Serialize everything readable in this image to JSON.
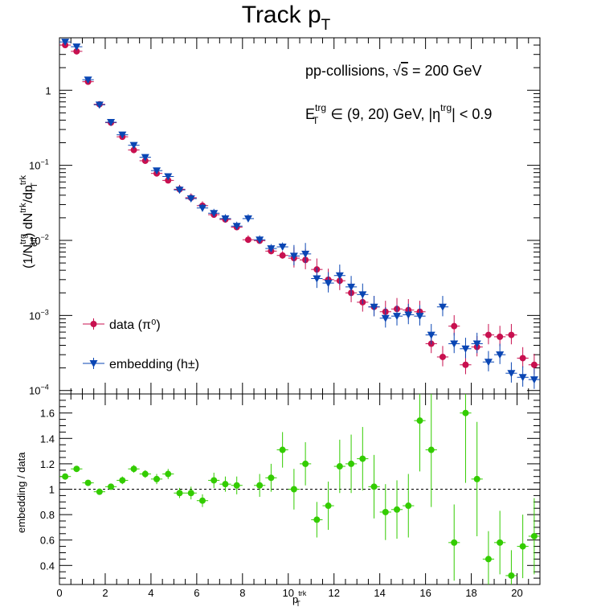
{
  "chart_data": [
    {
      "type": "scatter",
      "title": "Track p",
      "title_sub": "T",
      "annotations": {
        "line1": "pp-collisions, √s = 200 GeV",
        "line2": "E_T^trg ∈ (9, 20) GeV, |η^trg| < 0.9"
      },
      "ylabel": "(1/N_eff^trg) dN^trk/dp_T^trk",
      "yscale": "log",
      "ylim": [
        9e-05,
        5
      ],
      "xlim": [
        0,
        21
      ],
      "y_ticks": [
        "10⁻⁴",
        "10⁻³",
        "10⁻²",
        "10⁻¹",
        "1"
      ],
      "legend": {
        "placement": "bottom-left",
        "entries": [
          "data (π⁰)",
          "embedding (h±)"
        ]
      },
      "series": [
        {
          "name": "data (π⁰)",
          "color": "#c8104f",
          "marker": "circle",
          "x": [
            0.25,
            0.75,
            1.25,
            1.75,
            2.25,
            2.75,
            3.25,
            3.75,
            4.25,
            4.75,
            5.25,
            5.75,
            6.25,
            6.75,
            7.25,
            7.75,
            8.25,
            8.75,
            9.25,
            9.75,
            10.25,
            10.75,
            11.25,
            11.75,
            12.25,
            12.75,
            13.25,
            13.75,
            14.25,
            14.75,
            15.25,
            15.75,
            16.25,
            16.75,
            17.25,
            17.75,
            18.25,
            18.75,
            19.25,
            19.75,
            20.25,
            20.75
          ],
          "y": [
            4.0,
            3.3,
            1.3,
            0.65,
            0.37,
            0.24,
            0.16,
            0.115,
            0.078,
            0.063,
            0.048,
            0.037,
            0.029,
            0.022,
            0.019,
            0.015,
            0.0102,
            0.0099,
            0.0072,
            0.0063,
            0.0058,
            0.0055,
            0.0041,
            0.003,
            0.0029,
            0.002,
            0.0015,
            0.0013,
            0.00112,
            0.00122,
            0.00118,
            0.00112,
            0.00042,
            0.00028,
            0.00072,
            0.00022,
            0.00038,
            0.00055,
            0.00052,
            0.00055,
            0.00027,
            0.00022
          ]
        },
        {
          "name": "embedding (h±)",
          "color": "#0a46b4",
          "marker": "triangle-down",
          "x": [
            0.25,
            0.75,
            1.25,
            1.75,
            2.25,
            2.75,
            3.25,
            3.75,
            4.25,
            4.75,
            5.25,
            5.75,
            6.25,
            6.75,
            7.25,
            7.75,
            8.25,
            8.75,
            9.25,
            9.75,
            10.25,
            10.75,
            11.25,
            11.75,
            12.25,
            12.75,
            13.25,
            13.75,
            14.25,
            14.75,
            15.25,
            15.75,
            16.25,
            16.75,
            17.25,
            17.75,
            18.25,
            18.75,
            19.25,
            19.75,
            20.25,
            20.75
          ],
          "y": [
            4.4,
            3.8,
            1.38,
            0.64,
            0.375,
            0.255,
            0.185,
            0.128,
            0.085,
            0.071,
            0.047,
            0.036,
            0.027,
            0.023,
            0.0195,
            0.0155,
            0.0195,
            0.0102,
            0.0078,
            0.0082,
            0.0062,
            0.0066,
            0.0031,
            0.0027,
            0.0034,
            0.0024,
            0.0019,
            0.0013,
            0.00092,
            0.00098,
            0.00102,
            0.00098,
            0.00055,
            0.0013,
            0.00042,
            0.00036,
            0.00042,
            0.00024,
            0.0003,
            0.00017,
            0.00015,
            0.00014
          ]
        }
      ]
    },
    {
      "type": "scatter",
      "xlabel": "p_T^trk",
      "ylabel": "embedding / data",
      "xlim": [
        0,
        21
      ],
      "ylim": [
        0.25,
        1.75
      ],
      "x_ticks": [
        0,
        2,
        4,
        6,
        8,
        10,
        12,
        14,
        16,
        18,
        20
      ],
      "y_ticks": [
        0.4,
        0.6,
        0.8,
        1,
        1.2,
        1.4,
        1.6
      ],
      "reference_line": 1,
      "series": [
        {
          "name": "embedding / data",
          "color": "#33cc00",
          "marker": "circle",
          "x": [
            0.25,
            0.75,
            1.25,
            1.75,
            2.25,
            2.75,
            3.25,
            3.75,
            4.25,
            4.75,
            5.25,
            5.75,
            6.25,
            6.75,
            7.25,
            7.75,
            8.75,
            9.25,
            9.75,
            10.25,
            10.75,
            11.25,
            11.75,
            12.25,
            12.75,
            13.25,
            13.75,
            14.25,
            14.75,
            15.25,
            15.75,
            16.25,
            17.25,
            17.75,
            18.25,
            18.75,
            19.25,
            19.75,
            20.25,
            20.75
          ],
          "y": [
            1.1,
            1.16,
            1.05,
            0.98,
            1.02,
            1.07,
            1.16,
            1.12,
            1.08,
            1.12,
            0.97,
            0.97,
            0.91,
            1.07,
            1.04,
            1.03,
            1.03,
            1.09,
            1.31,
            1.0,
            1.2,
            0.76,
            0.87,
            1.18,
            1.2,
            1.24,
            1.02,
            0.82,
            0.84,
            0.87,
            1.54,
            1.31,
            0.58,
            1.6,
            1.08,
            0.45,
            0.58,
            0.32,
            0.55,
            0.63
          ],
          "yerr": [
            0.02,
            0.02,
            0.02,
            0.02,
            0.02,
            0.03,
            0.03,
            0.03,
            0.04,
            0.04,
            0.04,
            0.05,
            0.05,
            0.06,
            0.06,
            0.07,
            0.09,
            0.11,
            0.14,
            0.16,
            0.17,
            0.14,
            0.19,
            0.21,
            0.23,
            0.25,
            0.25,
            0.22,
            0.23,
            0.25,
            0.4,
            0.45,
            0.3,
            0.55,
            0.45,
            0.22,
            0.25,
            0.2,
            0.25,
            0.3
          ]
        }
      ]
    }
  ]
}
